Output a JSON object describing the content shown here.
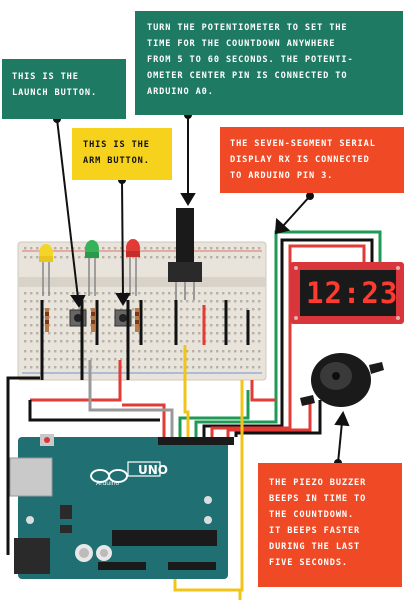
{
  "callouts": {
    "launch": "THIS IS THE\nLAUNCH BUTTON.",
    "arm": "THIS IS THE\nARM BUTTON.",
    "potentiometer": "TURN THE POTENTIOMETER TO SET THE\nTIME FOR THE COUNTDOWN ANYWHERE\nFROM 5 TO 60 SECONDS. THE POTENTI-\nOMETER CENTER PIN IS CONNECTED TO\nARDUINO A0.",
    "display": "THE SEVEN-SEGMENT SERIAL\nDISPLAY RX IS CONNECTED\nTO ARDUINO PIN 3.",
    "piezo": "THE PIEZO BUZZER\nBEEPS IN TIME TO\nTHE COUNTDOWN.\nIT BEEPS FASTER\nDURING THE LAST\nFIVE SECONDS."
  },
  "display": {
    "digits": "12:23"
  },
  "board": {
    "brand": "UNO",
    "maker": "Arduino"
  },
  "colors": {
    "teal": "#1f7a63",
    "yellow": "#f6d21d",
    "orange": "#ef4a25",
    "board": "#1f6f73",
    "breadboard": "#e8e3db",
    "display_pcb": "#d9363b"
  }
}
